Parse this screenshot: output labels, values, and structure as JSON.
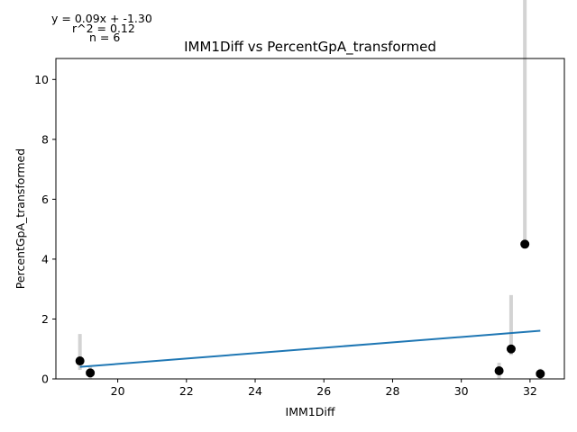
{
  "annotations": {
    "equation": "y = 0.09x + -1.30",
    "r2": "r^2 = 0.12",
    "n": "n = 6"
  },
  "chart_data": {
    "type": "scatter",
    "title": "IMM1Diff vs PercentGpA_transformed",
    "xlabel": "IMM1Diff",
    "ylabel": "PercentGpA_transformed",
    "xlim": [
      18.2,
      33.0
    ],
    "ylim": [
      0,
      10.7
    ],
    "xticks": [
      20,
      22,
      24,
      26,
      28,
      30,
      32
    ],
    "yticks": [
      0,
      2,
      4,
      6,
      8,
      10
    ],
    "points": [
      {
        "x": 18.9,
        "y": 0.6,
        "err_low": 0.3,
        "err_high": 0.9
      },
      {
        "x": 19.2,
        "y": 0.2,
        "err_low": 0.2,
        "err_high": 0.2
      },
      {
        "x": 31.1,
        "y": 0.27,
        "err_low": 0.27,
        "err_high": 0.27
      },
      {
        "x": 31.45,
        "y": 1.0,
        "err_low": 0.2,
        "err_high": 1.8
      },
      {
        "x": 31.85,
        "y": 4.5,
        "err_low": 0.0,
        "err_high": 10.1
      },
      {
        "x": 32.3,
        "y": 0.17,
        "err_low": 0.17,
        "err_high": 0.17
      }
    ],
    "fit_line": {
      "slope": 0.09,
      "intercept": -1.3,
      "x_range": [
        18.9,
        32.3
      ]
    },
    "colors": {
      "points": "#000000",
      "errorbars": "#d3d3d3",
      "fit": "#1f77b4"
    },
    "grid": false
  }
}
